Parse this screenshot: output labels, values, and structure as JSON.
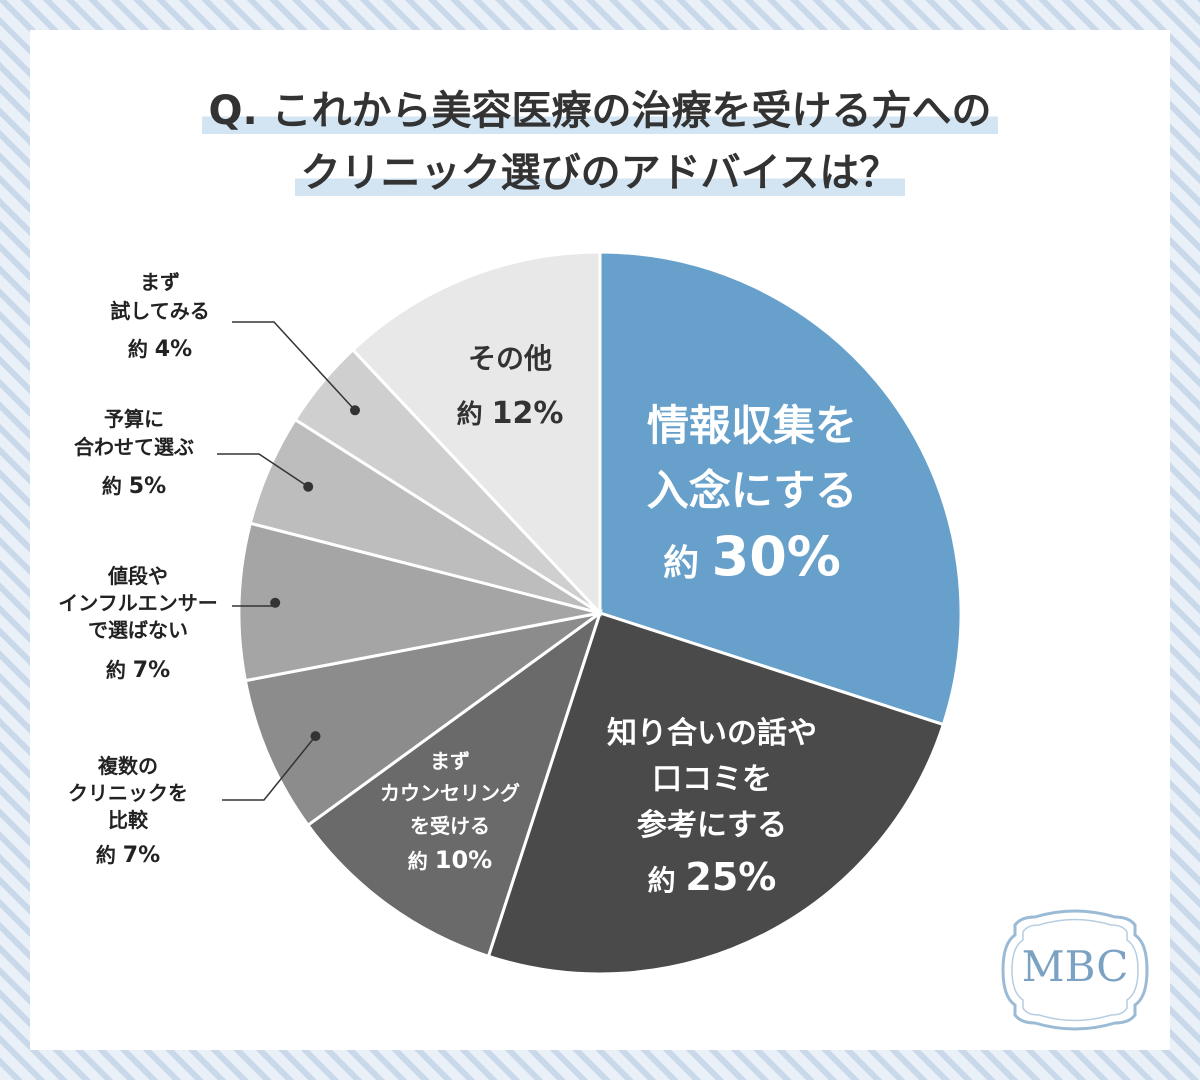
{
  "title": {
    "line1": "Q. これから美容医療の治療を受ける方への",
    "line2": "クリニック選びのアドバイスは？"
  },
  "chart_data": {
    "type": "pie",
    "title": "Q. これから美容医療の治療を受ける方へのクリニック選びのアドバイスは？",
    "slices": [
      {
        "label": "情報収集を入念にする",
        "value_label": "約 30%",
        "value": 30,
        "color": "#67a1cb"
      },
      {
        "label": "知り合いの話や口コミを参考にする",
        "value_label": "約 25%",
        "value": 25,
        "color": "#4a4a4a"
      },
      {
        "label": "まずカウンセリングを受ける",
        "value_label": "約 10%",
        "value": 10,
        "color": "#6a6a6a"
      },
      {
        "label": "複数のクリニックを比較",
        "value_label": "約 7%",
        "value": 7,
        "color": "#8c8c8c"
      },
      {
        "label": "値段やインフルエンサーで選ばない",
        "value_label": "約 7%",
        "value": 7,
        "color": "#a5a5a5"
      },
      {
        "label": "予算に合わせて選ぶ",
        "value_label": "約 5%",
        "value": 5,
        "color": "#bdbdbd"
      },
      {
        "label": "まず試してみる",
        "value_label": "約 4%",
        "value": 4,
        "color": "#cfcfcf"
      },
      {
        "label": "その他",
        "value_label": "約 12%",
        "value": 12,
        "color": "#e8e8e8"
      }
    ]
  },
  "logo": {
    "text": "MBC",
    "color": "#7ba2c3"
  }
}
